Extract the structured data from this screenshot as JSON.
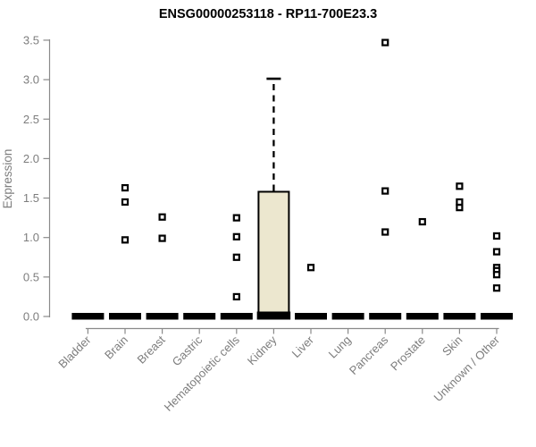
{
  "chart_data": {
    "type": "boxplot",
    "title": "ENSG00000253118 - RP11-700E23.3",
    "xlabel": "",
    "ylabel": "Expression",
    "ylim": [
      0,
      3.5
    ],
    "yticks": [
      0.0,
      0.5,
      1.0,
      1.5,
      2.0,
      2.5,
      3.0,
      3.5
    ],
    "grid": "off",
    "legend_position": "none",
    "categories": [
      "Bladder",
      "Brain",
      "Breast",
      "Gastric",
      "Hematopoietic cells",
      "Kidney",
      "Liver",
      "Lung",
      "Pancreas",
      "Prostate",
      "Skin",
      "Unknown / Other"
    ],
    "series": [
      {
        "category": "Bladder",
        "q1": 0,
        "median": 0,
        "q3": 0,
        "whisker_high": null,
        "outliers": []
      },
      {
        "category": "Brain",
        "q1": 0,
        "median": 0,
        "q3": 0,
        "whisker_high": null,
        "outliers": [
          1.63,
          1.45,
          0.97
        ]
      },
      {
        "category": "Breast",
        "q1": 0,
        "median": 0,
        "q3": 0,
        "whisker_high": null,
        "outliers": [
          1.26,
          0.99
        ]
      },
      {
        "category": "Gastric",
        "q1": 0,
        "median": 0,
        "q3": 0,
        "whisker_high": null,
        "outliers": []
      },
      {
        "category": "Hematopoietic cells",
        "q1": 0,
        "median": 0,
        "q3": 0,
        "whisker_high": null,
        "outliers": [
          1.25,
          1.01,
          0.75,
          0.25
        ]
      },
      {
        "category": "Kidney",
        "q1": 0,
        "median": 0,
        "q3": 1.58,
        "whisker_high": 3.0,
        "outliers": []
      },
      {
        "category": "Liver",
        "q1": 0,
        "median": 0,
        "q3": 0,
        "whisker_high": null,
        "outliers": [
          0.62
        ]
      },
      {
        "category": "Lung",
        "q1": 0,
        "median": 0,
        "q3": 0,
        "whisker_high": null,
        "outliers": []
      },
      {
        "category": "Pancreas",
        "q1": 0,
        "median": 0,
        "q3": 0,
        "whisker_high": null,
        "outliers": [
          3.47,
          1.59,
          1.07
        ]
      },
      {
        "category": "Prostate",
        "q1": 0,
        "median": 0,
        "q3": 0,
        "whisker_high": null,
        "outliers": [
          1.2
        ]
      },
      {
        "category": "Skin",
        "q1": 0,
        "median": 0,
        "q3": 0,
        "whisker_high": null,
        "outliers": [
          1.65,
          1.45,
          1.38
        ]
      },
      {
        "category": "Unknown / Other",
        "q1": 0,
        "median": 0,
        "q3": 0,
        "whisker_high": null,
        "outliers": [
          1.02,
          0.82,
          0.62,
          0.58,
          0.53,
          0.36
        ]
      }
    ],
    "colors": {
      "box_fill": "#ECE7CF",
      "box_stroke": "#000000",
      "median": "#000000",
      "outlier": "#000000",
      "axis": "#8a8a8a",
      "tick_text": "#7d7d7d",
      "title_text": "#000000",
      "background": "#ffffff"
    }
  }
}
